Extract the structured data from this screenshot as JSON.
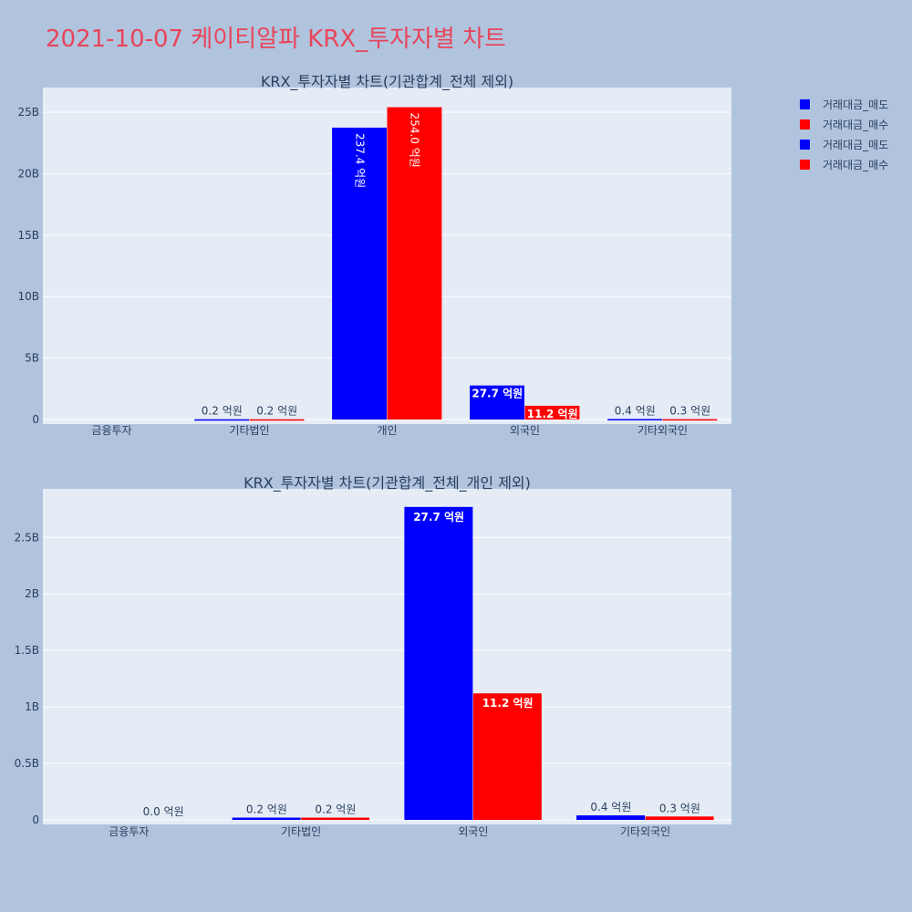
{
  "page": {
    "title": "2021-10-07 케이티알파 KRX_투자자별 차트"
  },
  "legend": [
    {
      "label": "거래대금_매도",
      "color": "#0000ff"
    },
    {
      "label": "거래대금_매수",
      "color": "#ff0000"
    },
    {
      "label": "거래대금_매도",
      "color": "#0000ff"
    },
    {
      "label": "거래대금_매수",
      "color": "#ff0000"
    }
  ],
  "chart_data": [
    {
      "type": "bar",
      "title": "KRX_투자자별 차트(기관합계_전체 제외)",
      "categories": [
        "금융투자",
        "기타법인",
        "개인",
        "외국인",
        "기타외국인"
      ],
      "yticks": [
        0,
        5000000000,
        10000000000,
        15000000000,
        20000000000,
        25000000000
      ],
      "ytick_labels": [
        "0",
        "5B",
        "10B",
        "15B",
        "20B",
        "25B"
      ],
      "ylim": [
        0,
        27000000000
      ],
      "series": [
        {
          "name": "거래대금_매도",
          "color": "#0000ff",
          "values": [
            0,
            20000000,
            23740000000,
            2770000000,
            40000000
          ],
          "labels": [
            "",
            "0.2 억원",
            "237.4 억원",
            "27.7 억원",
            "0.4 억원"
          ]
        },
        {
          "name": "거래대금_매수",
          "color": "#ff0000",
          "values": [
            0,
            20000000,
            25400000000,
            1120000000,
            30000000
          ],
          "labels": [
            "",
            "0.2 억원",
            "254.0 억원",
            "11.2 억원",
            "0.3 억원"
          ]
        }
      ]
    },
    {
      "type": "bar",
      "title": "KRX_투자자별 차트(기관합계_전체_개인 제외)",
      "categories": [
        "금융투자",
        "기타법인",
        "외국인",
        "기타외국인"
      ],
      "yticks": [
        0,
        500000000,
        1000000000,
        1500000000,
        2000000000,
        2500000000
      ],
      "ytick_labels": [
        "0",
        "0.5B",
        "1B",
        "1.5B",
        "2B",
        "2.5B"
      ],
      "ylim": [
        0,
        2930000000
      ],
      "series": [
        {
          "name": "거래대금_매도",
          "color": "#0000ff",
          "values": [
            0,
            20000000,
            2770000000,
            40000000
          ],
          "labels": [
            "",
            "0.2 억원",
            "27.7 억원",
            "0.4 억원"
          ]
        },
        {
          "name": "거래대금_매수",
          "color": "#ff0000",
          "values": [
            0,
            20000000,
            1120000000,
            30000000
          ],
          "labels": [
            "0.0 억원",
            "0.2 억원",
            "11.2 억원",
            "0.3 억원"
          ]
        }
      ]
    }
  ]
}
